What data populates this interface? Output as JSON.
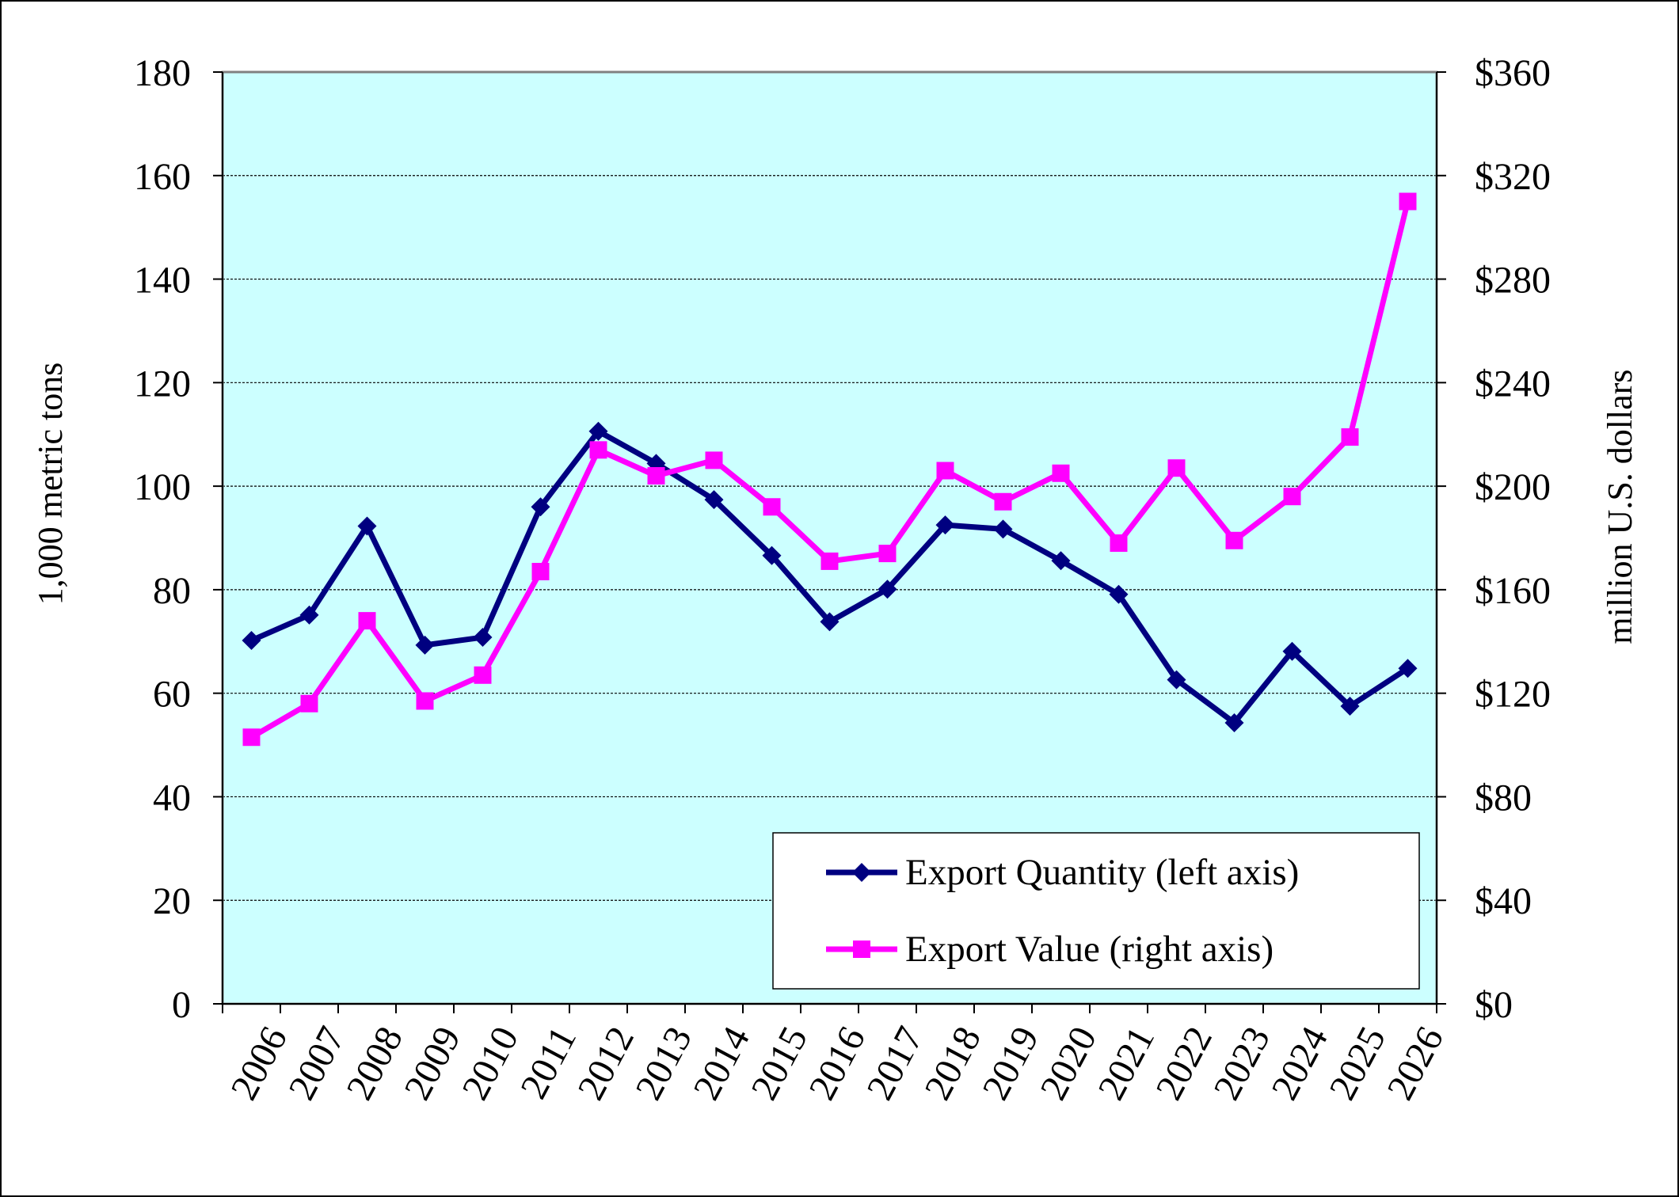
{
  "chart_data": {
    "type": "line",
    "title": "",
    "grid": true,
    "legend_position": "bottom-right",
    "colors": {
      "plot_background": "#ccffff",
      "quantity": "#000080",
      "value": "#ff00ff",
      "gridline": "#000000"
    },
    "categories": [
      "2006",
      "2007",
      "2008",
      "2009",
      "2010",
      "2011",
      "2012",
      "2013",
      "2014",
      "2015",
      "2016",
      "2017",
      "2018",
      "2019",
      "2020",
      "2021",
      "2022",
      "2023",
      "2024",
      "2025",
      "2026"
    ],
    "left_axis": {
      "label": "1,000 metric tons",
      "range": [
        0,
        180
      ],
      "ticks": [
        0,
        20,
        40,
        60,
        80,
        100,
        120,
        140,
        160,
        180
      ],
      "tick_labels": [
        "0",
        "20",
        "40",
        "60",
        "80",
        "100",
        "120",
        "140",
        "160",
        "180"
      ]
    },
    "right_axis": {
      "label": "million U.S. dollars",
      "range": [
        0,
        360
      ],
      "ticks": [
        0,
        40,
        80,
        120,
        160,
        200,
        240,
        280,
        320,
        360
      ],
      "tick_labels": [
        "$0",
        "$40",
        "$80",
        "$120",
        "$160",
        "$200",
        "$240",
        "$280",
        "$320",
        "$360"
      ]
    },
    "series": [
      {
        "name": "Export Quantity (left axis)",
        "axis": "left",
        "marker": "diamond",
        "values": [
          70.2,
          75.1,
          92.3,
          69.3,
          70.8,
          96.0,
          110.6,
          104.4,
          97.4,
          86.6,
          73.8,
          80.1,
          92.5,
          91.7,
          85.6,
          79.1,
          62.6,
          54.3,
          68.1,
          57.5,
          64.8
        ]
      },
      {
        "name": "Export Value (right axis)",
        "axis": "right",
        "marker": "square",
        "values": [
          103,
          116,
          148,
          117,
          127,
          167,
          214,
          204,
          210,
          192,
          171,
          174,
          206,
          194,
          205,
          178,
          207,
          179,
          196,
          219,
          310
        ]
      }
    ]
  }
}
